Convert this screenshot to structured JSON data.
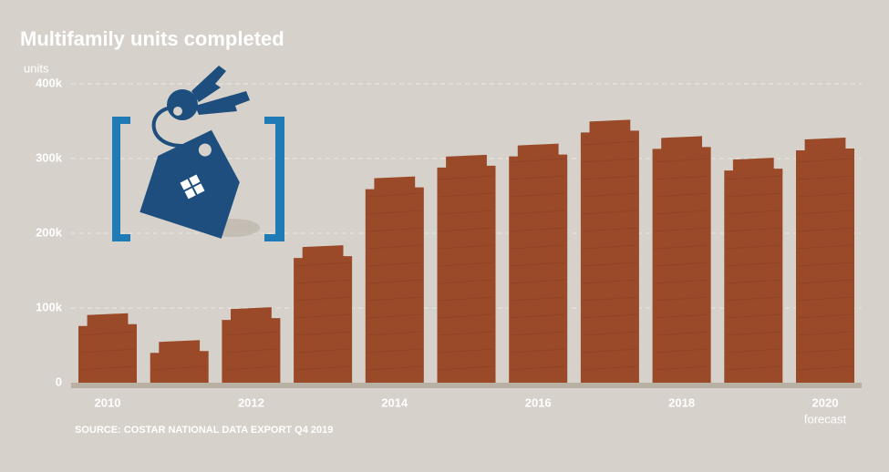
{
  "chart_data": {
    "type": "bar",
    "title": "Multifamily units completed",
    "y_label": "units",
    "source": "SOURCE: COSTAR NATIONAL DATA EXPORT Q4 2019",
    "annotation": "forecast",
    "categories": [
      "2010",
      null,
      "2012",
      null,
      "2014",
      null,
      "2016",
      null,
      "2018",
      null,
      "2020"
    ],
    "values": [
      93000,
      57000,
      101000,
      184000,
      276000,
      305000,
      320000,
      352000,
      330000,
      301000,
      328000
    ],
    "color": "#9a4a29",
    "ylim": [
      0,
      400000
    ],
    "yticks": [
      0,
      {
        "value": 100000,
        "label": "100k"
      },
      {
        "value": 200000,
        "label": "200k"
      },
      {
        "value": 300000,
        "label": "300k"
      },
      {
        "value": 400000,
        "label": "400k"
      }
    ],
    "grid": true
  }
}
